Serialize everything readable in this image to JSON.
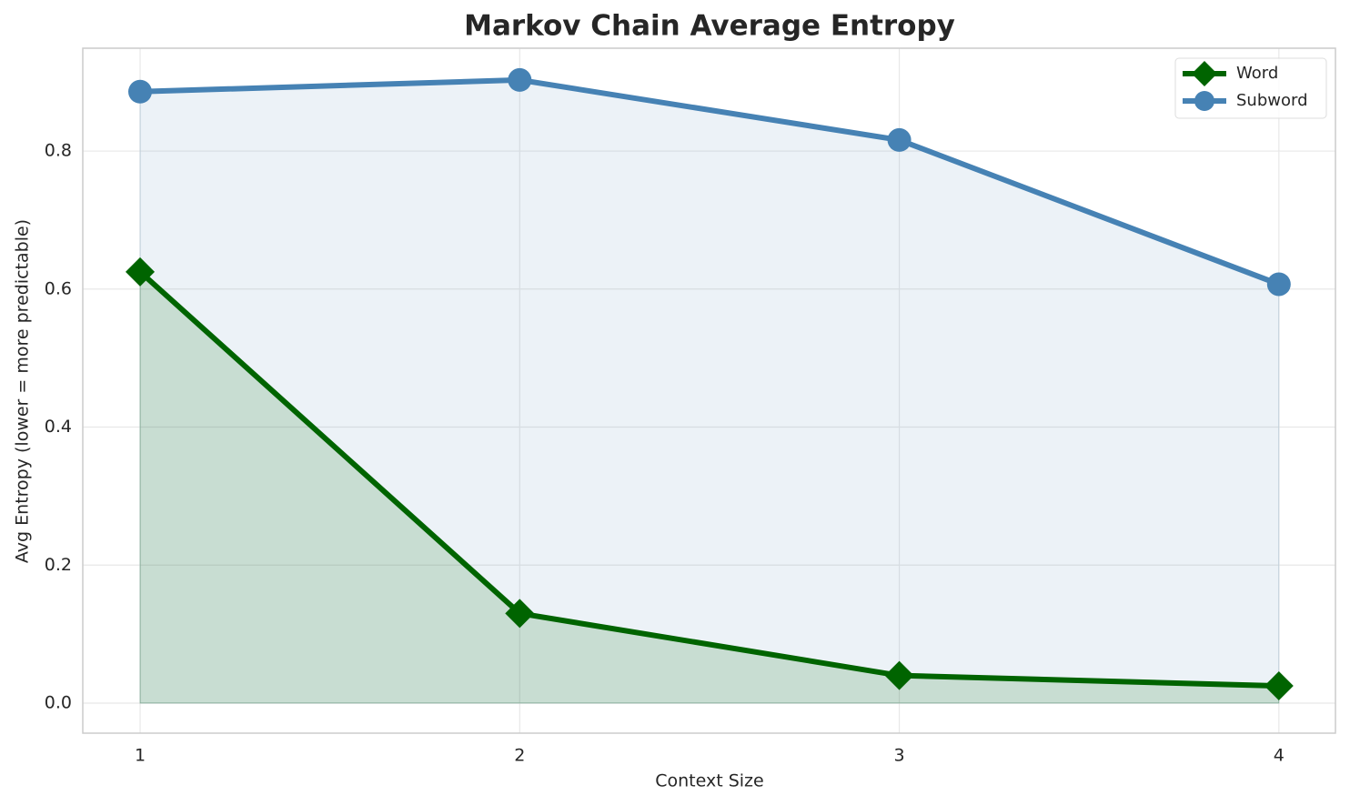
{
  "chart_data": {
    "type": "line",
    "title": "Markov Chain Average Entropy",
    "x_label": "Context Size",
    "y_label": "Avg Entropy (lower = more predictable)",
    "x": [
      1,
      2,
      3,
      4
    ],
    "series": [
      {
        "name": "Word",
        "color": "#006400",
        "marker": "diamond",
        "values": [
          0.625,
          0.13,
          0.04,
          0.025
        ]
      },
      {
        "name": "Subword",
        "color": "#4682b4",
        "marker": "circle",
        "values": [
          0.886,
          0.903,
          0.816,
          0.607
        ]
      }
    ],
    "fill": true,
    "xlim": [
      0.849,
      4.149
    ],
    "xticks": [
      1,
      2,
      3,
      4
    ],
    "ylim": [
      -0.0435,
      0.949
    ],
    "yticks": [
      {
        "value": 0,
        "label": "0.0"
      },
      0.2,
      0.4,
      0.6,
      0.8
    ],
    "grid": true,
    "legend": "upper right"
  }
}
